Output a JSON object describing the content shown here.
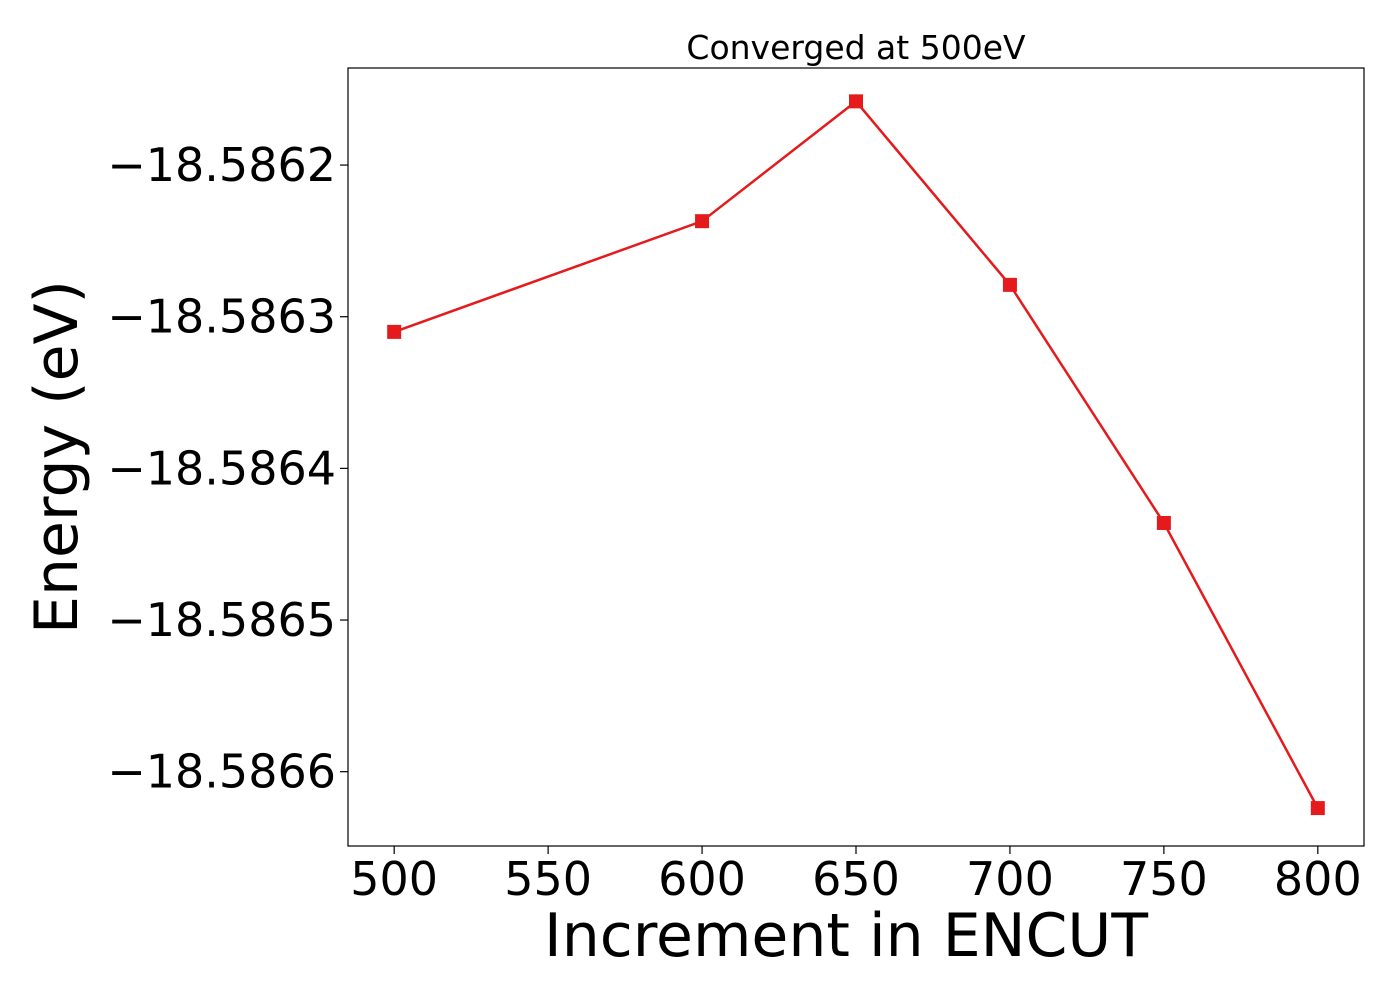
{
  "chart_data": {
    "type": "line",
    "title": "Converged at 500eV",
    "xlabel": "Increment in ENCUT",
    "ylabel": "Energy (eV)",
    "x": [
      500,
      600,
      650,
      700,
      750,
      800
    ],
    "series": [
      {
        "values": [
          -18.58631,
          -18.586237,
          -18.586158,
          -18.586279,
          -18.586436,
          -18.586624
        ],
        "color": "#e41a1c",
        "marker": "square"
      }
    ],
    "xticks": [
      500,
      550,
      600,
      650,
      700,
      750,
      800
    ],
    "xtick_labels": [
      "500",
      "550",
      "600",
      "650",
      "700",
      "750",
      "800"
    ],
    "yticks": [
      -18.5862,
      -18.5863,
      -18.5864,
      -18.5865,
      -18.5866
    ],
    "ytick_labels": [
      "−18.5862",
      "−18.5863",
      "−18.5864",
      "−18.5865",
      "−18.5866"
    ],
    "xlim": [
      485,
      815
    ],
    "ylim": [
      -18.586649,
      -18.586136
    ],
    "grid": false,
    "legend": "none"
  }
}
